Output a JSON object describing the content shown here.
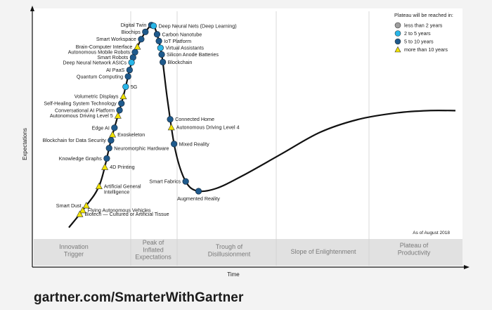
{
  "footer": {
    "url": "gartner.com/SmarterWithGartner"
  },
  "chart_data": {
    "type": "scatter",
    "title": "",
    "xlabel": "Time",
    "ylabel": "Expectations",
    "as_of": "As of August 2018",
    "phases": [
      "Innovation\nTrigger",
      "Peak of\nInflated\nExpectations",
      "Trough of\nDisillusionment",
      "Slope of Enlightenment",
      "Plateau of\nProductivity"
    ],
    "legend": {
      "title": "Plateau will be reached in:",
      "placement": "top-right",
      "items": [
        {
          "label": "less than 2 years",
          "marker": "circle",
          "color": "#9e9e9e"
        },
        {
          "label": "2 to 5 years",
          "marker": "circle",
          "color": "#29b6e8"
        },
        {
          "label": "5 to 10 years",
          "marker": "circle",
          "color": "#1f5a8c"
        },
        {
          "label": "more than 10 years",
          "marker": "triangle",
          "color": "#f2e300"
        }
      ]
    },
    "curve": {
      "x": [
        0.0,
        0.04,
        0.08,
        0.11,
        0.14,
        0.165,
        0.19,
        0.205,
        0.215,
        0.225,
        0.24,
        0.255,
        0.275,
        0.3,
        0.33,
        0.38,
        0.45,
        0.55,
        0.65,
        0.75,
        0.85,
        0.93,
        1.0
      ],
      "y": [
        0.04,
        0.13,
        0.24,
        0.45,
        0.64,
        0.82,
        0.92,
        0.96,
        0.975,
        0.95,
        0.84,
        0.63,
        0.4,
        0.26,
        0.21,
        0.22,
        0.28,
        0.38,
        0.48,
        0.54,
        0.57,
        0.58,
        0.58
      ]
    },
    "technologies": [
      {
        "name": "Digital Twin",
        "time": 0.213,
        "plateau": "5 to 10 years",
        "side": "left"
      },
      {
        "name": "Deep Neural Nets (Deep Learning)",
        "time": 0.219,
        "plateau": "2 to 5 years",
        "side": "right"
      },
      {
        "name": "Biochips",
        "time": 0.198,
        "plateau": "5 to 10 years",
        "side": "left"
      },
      {
        "name": "Carbon Nanotube",
        "time": 0.228,
        "plateau": "5 to 10 years",
        "side": "right"
      },
      {
        "name": "Smart Workspace",
        "time": 0.187,
        "plateau": "5 to 10 years",
        "side": "left"
      },
      {
        "name": "IoT Platform",
        "time": 0.233,
        "plateau": "5 to 10 years",
        "side": "right"
      },
      {
        "name": "Brain-Computer Interface",
        "time": 0.177,
        "plateau": "more than 10 years",
        "side": "left"
      },
      {
        "name": "Virtual Assistants",
        "time": 0.237,
        "plateau": "2 to 5 years",
        "side": "right"
      },
      {
        "name": "Autonomous Mobile Robots",
        "time": 0.171,
        "plateau": "5 to 10 years",
        "side": "left"
      },
      {
        "name": "Silicon Anode Batteries",
        "time": 0.24,
        "plateau": "5 to 10 years",
        "side": "right"
      },
      {
        "name": "Smart Robots",
        "time": 0.166,
        "plateau": "5 to 10 years",
        "side": "left"
      },
      {
        "name": "Blockchain",
        "time": 0.243,
        "plateau": "5 to 10 years",
        "side": "right"
      },
      {
        "name": "Deep Neural Network ASICs",
        "time": 0.162,
        "plateau": "2 to 5 years",
        "side": "left"
      },
      {
        "name": "AI PaaS",
        "time": 0.157,
        "plateau": "5 to 10 years",
        "side": "left"
      },
      {
        "name": "Quantum Computing",
        "time": 0.153,
        "plateau": "5 to 10 years",
        "side": "left"
      },
      {
        "name": "5G",
        "time": 0.147,
        "plateau": "2 to 5 years",
        "side": "right"
      },
      {
        "name": "Volumetric Displays",
        "time": 0.141,
        "plateau": "more than 10 years",
        "side": "left"
      },
      {
        "name": "Self-Healing System Technology",
        "time": 0.136,
        "plateau": "5 to 10 years",
        "side": "left"
      },
      {
        "name": "Conversational AI Platform",
        "time": 0.131,
        "plateau": "5 to 10 years",
        "side": "left"
      },
      {
        "name": "Autonomous Driving Level 5",
        "time": 0.127,
        "plateau": "more than 10 years",
        "side": "left"
      },
      {
        "name": "Edge AI",
        "time": 0.118,
        "plateau": "5 to 10 years",
        "side": "left"
      },
      {
        "name": "Exoskeleton",
        "time": 0.113,
        "plateau": "more than 10 years",
        "side": "right"
      },
      {
        "name": "Blockchain for Data Security",
        "time": 0.109,
        "plateau": "5 to 10 years",
        "side": "left"
      },
      {
        "name": "Neuromorphic Hardware",
        "time": 0.104,
        "plateau": "5 to 10 years",
        "side": "right"
      },
      {
        "name": "Knowledge Graphs",
        "time": 0.098,
        "plateau": "5 to 10 years",
        "side": "left"
      },
      {
        "name": "4D Printing",
        "time": 0.093,
        "plateau": "more than 10 years",
        "side": "right"
      },
      {
        "name": "Artificial General\nIntelligence",
        "time": 0.078,
        "plateau": "more than 10 years",
        "side": "right"
      },
      {
        "name": "Smart Dust",
        "time": 0.045,
        "plateau": "more than 10 years",
        "side": "left"
      },
      {
        "name": "Flying Autonomous Vehicles",
        "time": 0.036,
        "plateau": "more than 10 years",
        "side": "right"
      },
      {
        "name": "Biotech — Cultured or Artificial Tissue",
        "time": 0.028,
        "plateau": "more than 10 years",
        "side": "right"
      },
      {
        "name": "Connected Home",
        "time": 0.262,
        "plateau": "5 to 10 years",
        "side": "right"
      },
      {
        "name": "Autonomous Driving Level 4",
        "time": 0.265,
        "plateau": "more than 10 years",
        "side": "right"
      },
      {
        "name": "Mixed Reality",
        "time": 0.272,
        "plateau": "5 to 10 years",
        "side": "right"
      },
      {
        "name": "Smart Fabrics",
        "time": 0.302,
        "plateau": "5 to 10 years",
        "side": "left"
      },
      {
        "name": "Augmented Reality",
        "time": 0.335,
        "plateau": "5 to 10 years",
        "side": "below"
      }
    ],
    "grid": false
  }
}
